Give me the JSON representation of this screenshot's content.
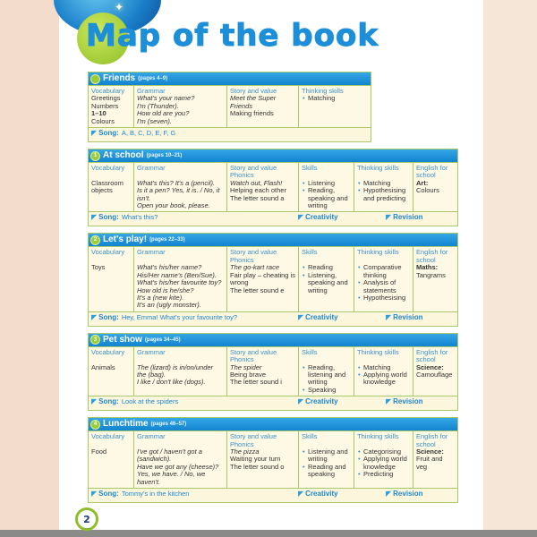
{
  "title": "Map of the book",
  "page_number": "2",
  "colors": {
    "header_blue": "#1a8fd6",
    "body_cream": "#fdf9e4",
    "border_green": "#a9c86a",
    "accent_green": "#8dbd2c"
  },
  "footer_labels": {
    "song": "Song:",
    "creativity": "Creativity",
    "revision": "Revision",
    "flag_icon": "triangle-flag-icon"
  },
  "units": [
    {
      "badge": "",
      "name": "Friends",
      "pages": "(pages 4–9)",
      "columns": [
        {
          "head": "Vocabulary",
          "lines": [
            {
              "t": "Greetings"
            },
            {
              "t": "Numbers"
            },
            {
              "t": "1–10",
              "b": true
            },
            {
              "t": "Colours"
            }
          ]
        },
        {
          "head": "Grammar",
          "lines": [
            {
              "t": "What's your name?",
              "i": true
            },
            {
              "t": "I'm (Thunder).",
              "i": true
            },
            {
              "t": "How old are you?",
              "i": true
            },
            {
              "t": "I'm (seven).",
              "i": true
            }
          ]
        },
        {
          "head": "Story and value",
          "lines": [
            {
              "t": "Meet the Super",
              "i": true
            },
            {
              "t": "Friends",
              "i": true
            },
            {
              "t": "Making friends"
            }
          ]
        },
        {
          "head": "Thinking skills",
          "lines": [
            {
              "t": "Matching",
              "bul": true
            }
          ]
        }
      ],
      "song": "A, B, C, D, E, F, G"
    },
    {
      "badge": "1",
      "name": "At school",
      "pages": "(pages 10–21)",
      "columns": [
        {
          "head": "Vocabulary",
          "lines": [
            {
              "t": ""
            },
            {
              "t": "Classroom"
            },
            {
              "t": "objects"
            }
          ]
        },
        {
          "head": "Grammar",
          "lines": [
            {
              "t": ""
            },
            {
              "t": "What's this? It's a (pencil).",
              "i": true
            },
            {
              "t": "Is it a pen? Yes, it is. / No, it",
              "i": true
            },
            {
              "t": "isn't.",
              "i": true
            },
            {
              "t": "Open your book, please.",
              "i": true
            }
          ]
        },
        {
          "head": "Story and value Phonics",
          "lines": [
            {
              "t": "Watch out, Flash!",
              "i": true
            },
            {
              "t": "Helping each other"
            },
            {
              "t": "The letter sound a"
            }
          ]
        },
        {
          "head": "Skills",
          "lines": [
            {
              "t": ""
            },
            {
              "t": "Listening",
              "bul": true
            },
            {
              "t": "Reading, speaking and writing",
              "bul": true
            }
          ]
        },
        {
          "head": "Thinking skills",
          "lines": [
            {
              "t": ""
            },
            {
              "t": "Matching",
              "bul": true
            },
            {
              "t": "Hypothesising and predicting",
              "bul": true
            }
          ]
        },
        {
          "head": "English for school",
          "lines": [
            {
              "t": "Art:",
              "b": true
            },
            {
              "t": "Colours"
            }
          ]
        }
      ],
      "song": "What's this?",
      "creativity": true,
      "revision": true
    },
    {
      "badge": "2",
      "name": "Let's play!",
      "pages": "(pages 22–33)",
      "columns": [
        {
          "head": "Vocabulary",
          "lines": [
            {
              "t": ""
            },
            {
              "t": "Toys"
            }
          ]
        },
        {
          "head": "Grammar",
          "lines": [
            {
              "t": ""
            },
            {
              "t": "What's his/her name?",
              "i": true
            },
            {
              "t": "His/Her name's (Ben/Sue).",
              "i": true
            },
            {
              "t": "What's his/her favourite toy?",
              "i": true
            },
            {
              "t": "How old is he/she?",
              "i": true
            },
            {
              "t": "It's a (new kite).",
              "i": true
            },
            {
              "t": "It's an (ugly monster).",
              "i": true
            }
          ]
        },
        {
          "head": "Story and value Phonics",
          "lines": [
            {
              "t": "The go-kart race",
              "i": true
            },
            {
              "t": "Fair play – cheating is wrong"
            },
            {
              "t": "The letter sound e"
            }
          ]
        },
        {
          "head": "Skills",
          "lines": [
            {
              "t": ""
            },
            {
              "t": "Reading",
              "bul": true
            },
            {
              "t": "Listening, speaking and writing",
              "bul": true
            }
          ]
        },
        {
          "head": "Thinking skills",
          "lines": [
            {
              "t": ""
            },
            {
              "t": "Comparative thinking",
              "bul": true
            },
            {
              "t": "Analysis of statements",
              "bul": true
            },
            {
              "t": "Hypothesising",
              "bul": true
            }
          ]
        },
        {
          "head": "English for school",
          "lines": [
            {
              "t": "Maths:",
              "b": true
            },
            {
              "t": "Tangrams"
            }
          ]
        }
      ],
      "song": "Hey, Emma! What's your favourite toy?",
      "creativity": true,
      "revision": true
    },
    {
      "badge": "3",
      "name": "Pet show",
      "pages": "(pages 34–45)",
      "columns": [
        {
          "head": "Vocabulary",
          "lines": [
            {
              "t": ""
            },
            {
              "t": "Animals"
            }
          ]
        },
        {
          "head": "Grammar",
          "lines": [
            {
              "t": ""
            },
            {
              "t": "The (lizard) is in/on/under the (bag).",
              "i": true
            },
            {
              "t": "I like / don't like (dogs).",
              "i": true
            }
          ]
        },
        {
          "head": "Story and value Phonics",
          "lines": [
            {
              "t": "The spider",
              "i": true
            },
            {
              "t": "Being brave"
            },
            {
              "t": "The letter sound i"
            }
          ]
        },
        {
          "head": "Skills",
          "lines": [
            {
              "t": ""
            },
            {
              "t": "Reading, listening and writing",
              "bul": true
            },
            {
              "t": "Speaking",
              "bul": true
            }
          ]
        },
        {
          "head": "Thinking skills",
          "lines": [
            {
              "t": ""
            },
            {
              "t": "Matching",
              "bul": true
            },
            {
              "t": "Applying world knowledge",
              "bul": true
            }
          ]
        },
        {
          "head": "English for school",
          "lines": [
            {
              "t": "Science:",
              "b": true
            },
            {
              "t": "Camouflage"
            }
          ]
        }
      ],
      "song": "Look at the spiders",
      "creativity": true,
      "revision": true
    },
    {
      "badge": "4",
      "name": "Lunchtime",
      "pages": "(pages 46–57)",
      "columns": [
        {
          "head": "Vocabulary",
          "lines": [
            {
              "t": ""
            },
            {
              "t": "Food"
            }
          ]
        },
        {
          "head": "Grammar",
          "lines": [
            {
              "t": ""
            },
            {
              "t": "I've got / haven't got a (sandwich).",
              "i": true
            },
            {
              "t": "Have we got any (cheese)?",
              "i": true
            },
            {
              "t": "Yes, we have. / No, we haven't.",
              "i": true
            }
          ]
        },
        {
          "head": "Story and value Phonics",
          "lines": [
            {
              "t": "The pizza",
              "i": true
            },
            {
              "t": "Waiting your turn"
            },
            {
              "t": "The letter sound o"
            }
          ]
        },
        {
          "head": "Skills",
          "lines": [
            {
              "t": ""
            },
            {
              "t": "Listening and writing",
              "bul": true
            },
            {
              "t": "Reading and speaking",
              "bul": true
            }
          ]
        },
        {
          "head": "Thinking skills",
          "lines": [
            {
              "t": ""
            },
            {
              "t": "Categorising",
              "bul": true
            },
            {
              "t": "Applying world knowledge",
              "bul": true
            },
            {
              "t": "Predicting",
              "bul": true
            }
          ]
        },
        {
          "head": "English for school",
          "lines": [
            {
              "t": "Science:",
              "b": true
            },
            {
              "t": "Fruit and veg"
            }
          ]
        }
      ],
      "song": "Tommy's in the kitchen",
      "creativity": true,
      "revision": true
    }
  ]
}
